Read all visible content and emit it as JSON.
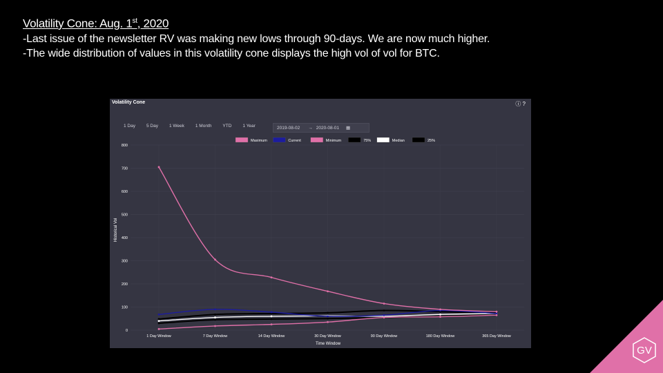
{
  "slide": {
    "title_main": "Volatility Cone: Aug. 1",
    "title_sup": "st",
    "title_end": ", 2020",
    "bullets": [
      "-Last issue of the newsletter RV was making new lows through 90-days. We are now much higher.",
      "-The wide distribution of values in this volatility cone displays the high vol of vol for BTC."
    ]
  },
  "panel": {
    "title": "Volatility Cone",
    "icons": [
      "info-icon",
      "help-icon"
    ],
    "tabs": [
      "1 Day",
      "5 Day",
      "1 Week",
      "1 Month",
      "YTD",
      "1 Year"
    ],
    "date_from": "2019-08-02",
    "date_sep": "→",
    "date_to": "2020-08-01"
  },
  "logo": {
    "text": "GV",
    "color": "#e070a8"
  },
  "chart_data": {
    "type": "line",
    "categories": [
      "1 Day Window",
      "7 Day Window",
      "14 Day Window",
      "30 Day Window",
      "90 Day Window",
      "180 Day Window",
      "365 Day Window"
    ],
    "xlabel": "Time Window",
    "ylabel": "Historical Vol",
    "ylim": [
      0,
      800
    ],
    "yticks": [
      0,
      100,
      200,
      300,
      400,
      500,
      600,
      700,
      800
    ],
    "grid": true,
    "legend_position": "top-center",
    "series": [
      {
        "name": "Maximum",
        "color": "#e070a8",
        "values": [
          705,
          305,
          228,
          168,
          115,
          90,
          80
        ]
      },
      {
        "name": "Current",
        "color": "#1c1c9e",
        "values": [
          68,
          90,
          78,
          60,
          65,
          85,
          72
        ]
      },
      {
        "name": "Minimum",
        "color": "#e070a8",
        "values": [
          5,
          18,
          25,
          35,
          55,
          58,
          65
        ]
      },
      {
        "name": "75%",
        "color": "#000000",
        "values": [
          48,
          68,
          72,
          75,
          85,
          80,
          75
        ]
      },
      {
        "name": "Median",
        "color": "#ffffff",
        "values": [
          40,
          55,
          60,
          62,
          60,
          68,
          72
        ]
      },
      {
        "name": "25%",
        "color": "#000000",
        "values": [
          30,
          45,
          48,
          50,
          55,
          60,
          68
        ]
      }
    ]
  }
}
